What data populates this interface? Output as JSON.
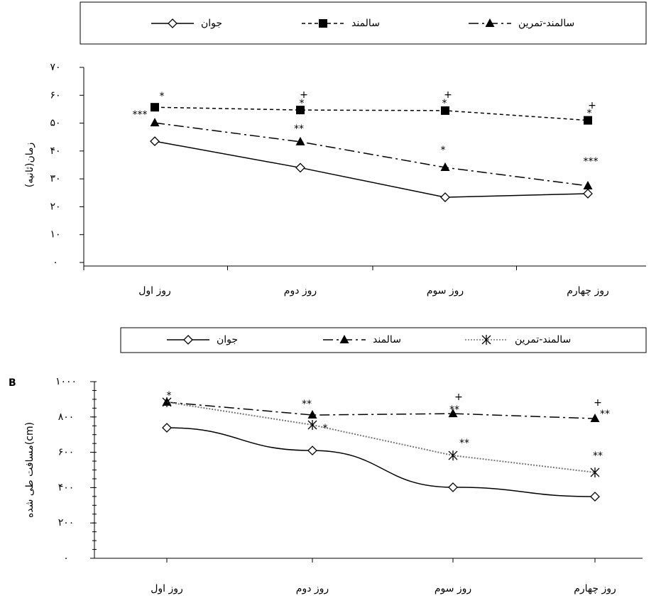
{
  "chart_data": [
    {
      "type": "line",
      "y_label": "زمان(ثانیه)",
      "categories": [
        "روز اول",
        "روز دوم",
        "روز سوم",
        "روز چهارم"
      ],
      "series": [
        {
          "name": "جوان",
          "color": "#000000",
          "line_style": "solid",
          "marker": "diamond",
          "values": [
            43.5,
            34,
            23.4,
            24.7
          ]
        },
        {
          "name": "سالمند",
          "color": "#000000",
          "line_style": "dashed",
          "marker": "square",
          "values": [
            55.7,
            54.7,
            54.5,
            51
          ]
        },
        {
          "name": "سالمند-تمرین",
          "color": "#000000",
          "line_style": "dashdot",
          "marker": "triangle",
          "values": [
            50.1,
            43.3,
            34.1,
            27.5
          ]
        }
      ],
      "ylim": [
        0,
        70
      ],
      "yticks": [
        {
          "value": 0,
          "label": "۰"
        },
        {
          "value": 10,
          "label": "۱۰"
        },
        {
          "value": 20,
          "label": "۲۰"
        },
        {
          "value": 30,
          "label": "۳۰"
        },
        {
          "value": 40,
          "label": "۴۰"
        },
        {
          "value": 50,
          "label": "۵۰"
        },
        {
          "value": 60,
          "label": "۶۰"
        },
        {
          "value": 70,
          "label": "۷۰"
        }
      ],
      "annotations": [
        "***",
        "*",
        "+",
        "*",
        "**",
        "+",
        "*",
        "*",
        "+",
        "*",
        "***"
      ]
    },
    {
      "type": "line",
      "panel_label": "B",
      "y_label": "مسافت طی شده(cm)",
      "categories": [
        "روز اول",
        "روز دوم",
        "روز سوم",
        "روز چهارم"
      ],
      "series": [
        {
          "name": "جوان",
          "color": "#000000",
          "line_style": "solid",
          "marker": "diamond",
          "values": [
            739,
            610,
            402,
            349
          ]
        },
        {
          "name": "سالمند",
          "color": "#000000",
          "line_style": "dashdot",
          "marker": "triangle",
          "values": [
            884,
            811,
            819,
            791
          ]
        },
        {
          "name": "سالمند-تمرین",
          "color": "#777777",
          "line_style": "dotted",
          "marker": "x",
          "values": [
            884,
            755,
            582,
            486
          ]
        }
      ],
      "ylim": [
        0,
        1000
      ],
      "yticks": [
        {
          "value": 0,
          "label": "۰"
        },
        {
          "value": 200,
          "label": "۲۰۰"
        },
        {
          "value": 400,
          "label": "۴۰۰"
        },
        {
          "value": 600,
          "label": "۶۰۰"
        },
        {
          "value": 800,
          "label": "۸۰۰"
        },
        {
          "value": 1000,
          "label": "۱۰۰۰"
        }
      ],
      "annotations": [
        "*",
        "**",
        "*",
        "+",
        "**",
        "**",
        "+",
        "**",
        "**"
      ]
    }
  ]
}
